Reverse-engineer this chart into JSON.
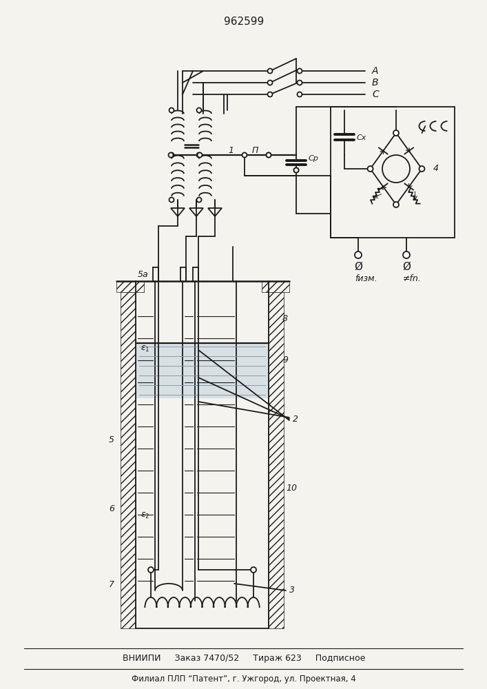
{
  "patent_number": "962599",
  "bg_color": "#f5f3ee",
  "line_color": "#1a1a1a",
  "footer_line1": "ВНИИПИ     Заказ 7470/52     Тираж 623     Подписное",
  "footer_line2": "Филиал ПЛП “Патент”, г. Ужгород, ул. Проектная, 4",
  "lw": 1.3
}
